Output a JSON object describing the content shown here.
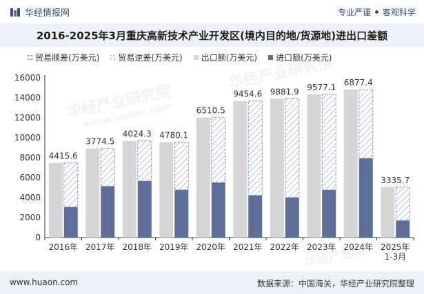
{
  "header": {
    "brand_name": "华经情报网",
    "tag_1": "专业严谨",
    "tag_2": "客观科学"
  },
  "chart_data": {
    "type": "bar",
    "title": "2016-2025年3月重庆高新技术产业开发区(境内目的地/货源地)进出口差额",
    "categories": [
      "2016年",
      "2017年",
      "2018年",
      "2019年",
      "2020年",
      "2021年",
      "2022年",
      "2023年",
      "2024年",
      "2025年\n1-3月"
    ],
    "series": [
      {
        "name": "贸易顺差(万美元)",
        "values": [
          4415.6,
          3774.5,
          4024.3,
          4780.1,
          6510.5,
          9454.6,
          9881.9,
          9577.1,
          6877.4,
          3335.7
        ]
      },
      {
        "name": "贸易逆差(万美元)",
        "values": [
          null,
          null,
          null,
          null,
          null,
          null,
          null,
          null,
          null,
          null
        ]
      },
      {
        "name": "出口额(万美元)",
        "values": [
          7480,
          8920,
          9680,
          9560,
          12020,
          13680,
          13910,
          14350,
          14820,
          5050
        ]
      },
      {
        "name": "进口额(万美元)",
        "values": [
          3060,
          5140,
          5660,
          4780,
          5510,
          4230,
          4020,
          4770,
          7940,
          1710
        ]
      }
    ],
    "data_labels": [
      "4415.6",
      "3774.5",
      "4024.3",
      "4780.1",
      "6510.5",
      "9454.6",
      "9881.9",
      "9577.1",
      "6877.4",
      "3335.7"
    ],
    "ylim": [
      0,
      16000
    ],
    "yticks": [
      0,
      2000,
      4000,
      6000,
      8000,
      10000,
      12000,
      14000,
      16000
    ],
    "legend_position": "top-left",
    "colors": {
      "export": "#d6d6d6",
      "import": "#5d6f98",
      "surplus": "#7b93b8",
      "deficit": "#d9c57c"
    }
  },
  "watermark_text": "华经产业研究院",
  "watermark_url": "www.huaon.com",
  "footer": {
    "website": "www.huaon.com",
    "source": "数据来源：中国海关，华经产业研究院整理"
  }
}
